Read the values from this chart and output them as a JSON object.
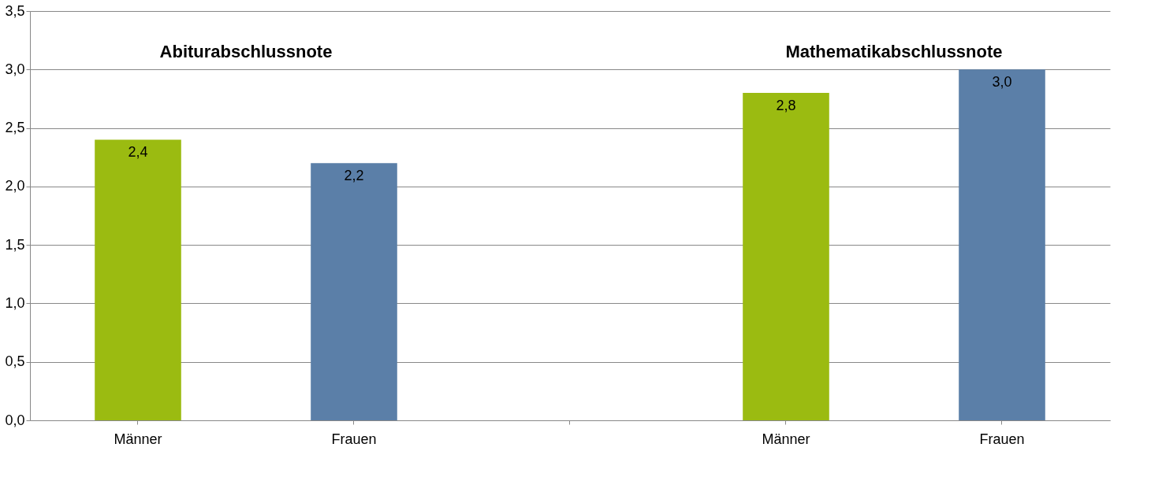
{
  "chart_data": {
    "type": "bar",
    "categories": [
      "Männer",
      "Frauen",
      null,
      "Männer",
      "Frauen"
    ],
    "values": [
      2.4,
      2.2,
      null,
      2.8,
      3.0
    ],
    "colors": [
      "#9bbb11",
      "#5b7fa8",
      null,
      "#9bbb11",
      "#5b7fa8"
    ],
    "value_labels": [
      "2,4",
      "2,2",
      null,
      "2,8",
      "3,0"
    ],
    "annotations": [
      "Abiturabschlussnote",
      "Mathematikabschlussnote"
    ],
    "ylim": [
      0,
      3.5
    ],
    "yticks": [
      {
        "value": 0,
        "label": "0,0"
      },
      {
        "value": 0.5,
        "label": "0,5"
      },
      {
        "value": 1,
        "label": "1,0"
      },
      {
        "value": 1.5,
        "label": "1,5"
      },
      {
        "value": 2,
        "label": "2,0"
      },
      {
        "value": 2.5,
        "label": "2,5"
      },
      {
        "value": 3,
        "label": "3,0"
      },
      {
        "value": 3.5,
        "label": "3,5"
      }
    ],
    "grid": "y"
  }
}
